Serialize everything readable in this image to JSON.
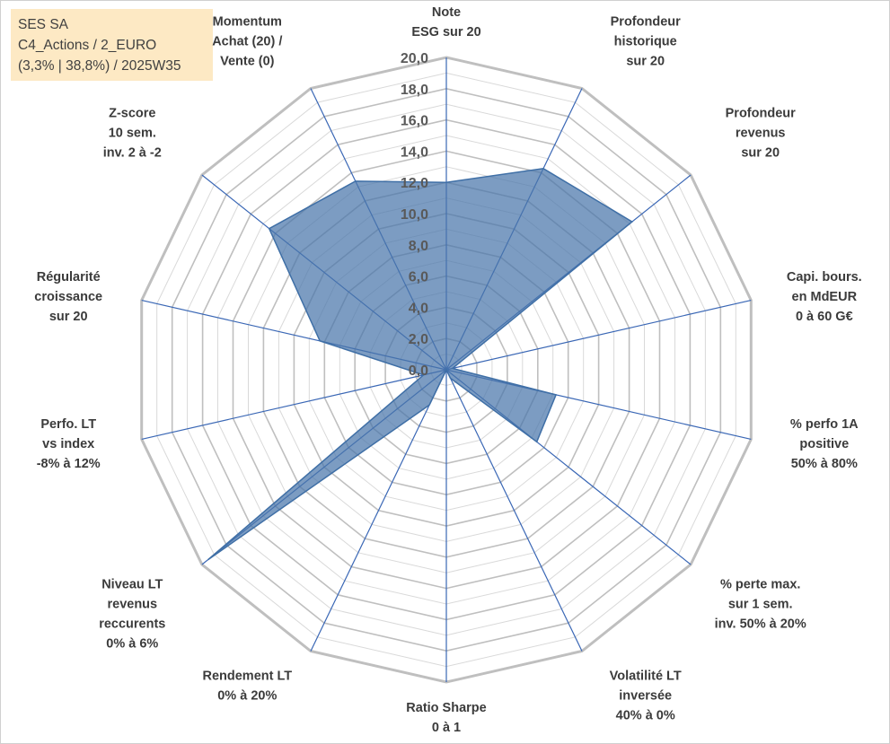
{
  "info_box": {
    "line1": "SES SA",
    "line2": "C4_Actions / 2_EURO",
    "line3": "(3,3% | 38,8%) / 2025W35"
  },
  "colors": {
    "fill": "#4a76aa",
    "stroke": "#3f6fa6",
    "grid_major": "#bfbfbf",
    "grid_minor": "#d9d9d9",
    "spoke": "#3a67b5"
  },
  "chart_data": {
    "type": "radar",
    "title": "",
    "rmin": 0,
    "rmax": 20,
    "tick_step": 2,
    "tick_labels": [
      "0,0",
      "2,0",
      "4,0",
      "6,0",
      "8,0",
      "10,0",
      "12,0",
      "14,0",
      "16,0",
      "18,0",
      "20,0"
    ],
    "grid": true,
    "axes": [
      {
        "label": [
          "Note",
          "ESG sur 20"
        ],
        "value": 12.0
      },
      {
        "label": [
          "Profondeur",
          "historique",
          "sur 20"
        ],
        "value": 14.3
      },
      {
        "label": [
          "Profondeur",
          "revenus",
          "sur 20"
        ],
        "value": 15.2
      },
      {
        "label": [
          "Capi. bours.",
          "en MdEUR",
          "0 à 60 G€"
        ],
        "value": 0.4
      },
      {
        "label": [
          "% perfo 1A",
          "positive",
          "50% à 80%"
        ],
        "value": 7.2
      },
      {
        "label": [
          "% perte max.",
          "sur 1 sem.",
          "inv. 50% à 20%"
        ],
        "value": 7.4
      },
      {
        "label": [
          "Volatilité LT",
          "inversée",
          "40% à 0%"
        ],
        "value": 0.6
      },
      {
        "label": [
          "Ratio Sharpe",
          "0 à 1"
        ],
        "value": 0.0
      },
      {
        "label": [
          "Rendement LT",
          "0% à 20%"
        ],
        "value": 2.5
      },
      {
        "label": [
          "Niveau LT",
          "revenus",
          "reccurents",
          "0% à 6%"
        ],
        "value": 19.5
      },
      {
        "label": [
          "Perfo. LT",
          "vs index",
          "-8% à 12%"
        ],
        "value": 1.5
      },
      {
        "label": [
          "Régularité",
          "croissance",
          "sur 20"
        ],
        "value": 8.3
      },
      {
        "label": [
          "Z-score",
          "10 sem.",
          "inv. 2 à -2"
        ],
        "value": 14.5
      },
      {
        "label": [
          "Momentum",
          "Achat (20) /",
          "Vente (0)"
        ],
        "value": 13.4
      }
    ]
  }
}
